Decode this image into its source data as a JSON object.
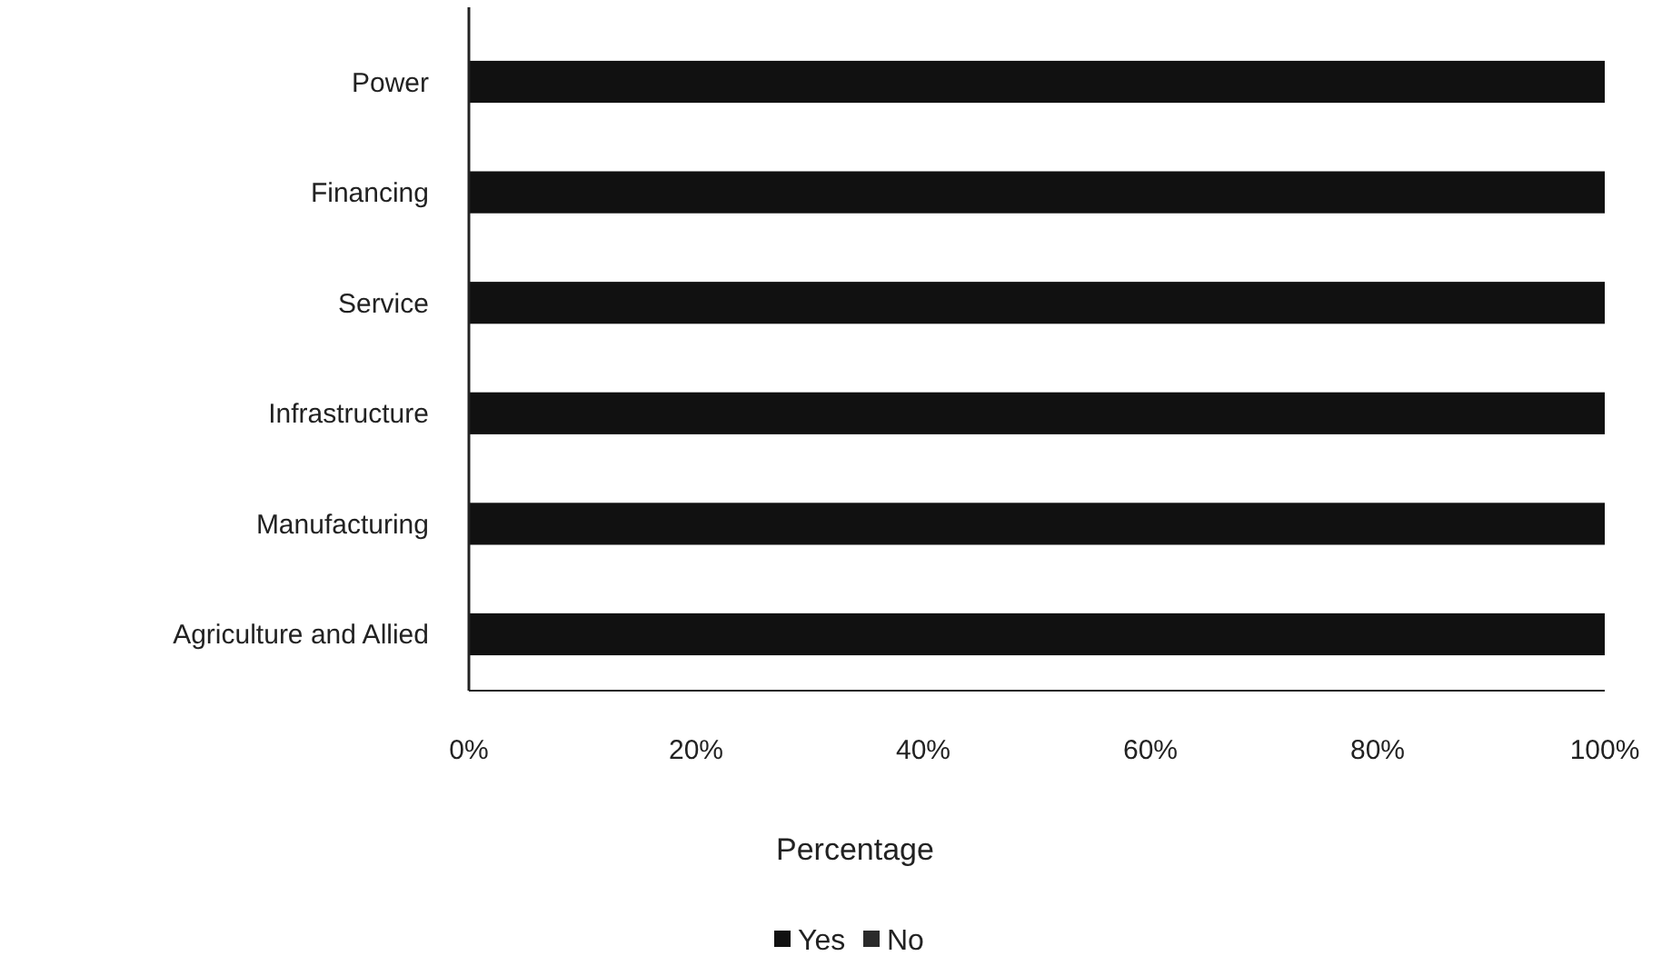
{
  "chart_data": {
    "type": "bar",
    "orientation": "horizontal",
    "stacked": true,
    "xlabel": "Percentage",
    "categories": [
      "Power",
      "Financing",
      "Service",
      "Infrastructure",
      "Manufacturing",
      "Agriculture and Allied"
    ],
    "series": [
      {
        "name": "Yes",
        "color": "#111111",
        "values": [
          100,
          100,
          100,
          100,
          100,
          100
        ]
      },
      {
        "name": "No",
        "color": "#2a2a2a",
        "values": [
          0,
          0,
          0,
          0,
          0,
          0
        ]
      }
    ],
    "xlim": [
      0,
      100
    ],
    "xticks": [
      {
        "value": 0,
        "label": "0%"
      },
      {
        "value": 20,
        "label": "20%"
      },
      {
        "value": 40,
        "label": "40%"
      },
      {
        "value": 60,
        "label": "60%"
      },
      {
        "value": 80,
        "label": "80%"
      },
      {
        "value": 100,
        "label": "100%"
      }
    ],
    "legend": "bottom",
    "grid": false
  }
}
